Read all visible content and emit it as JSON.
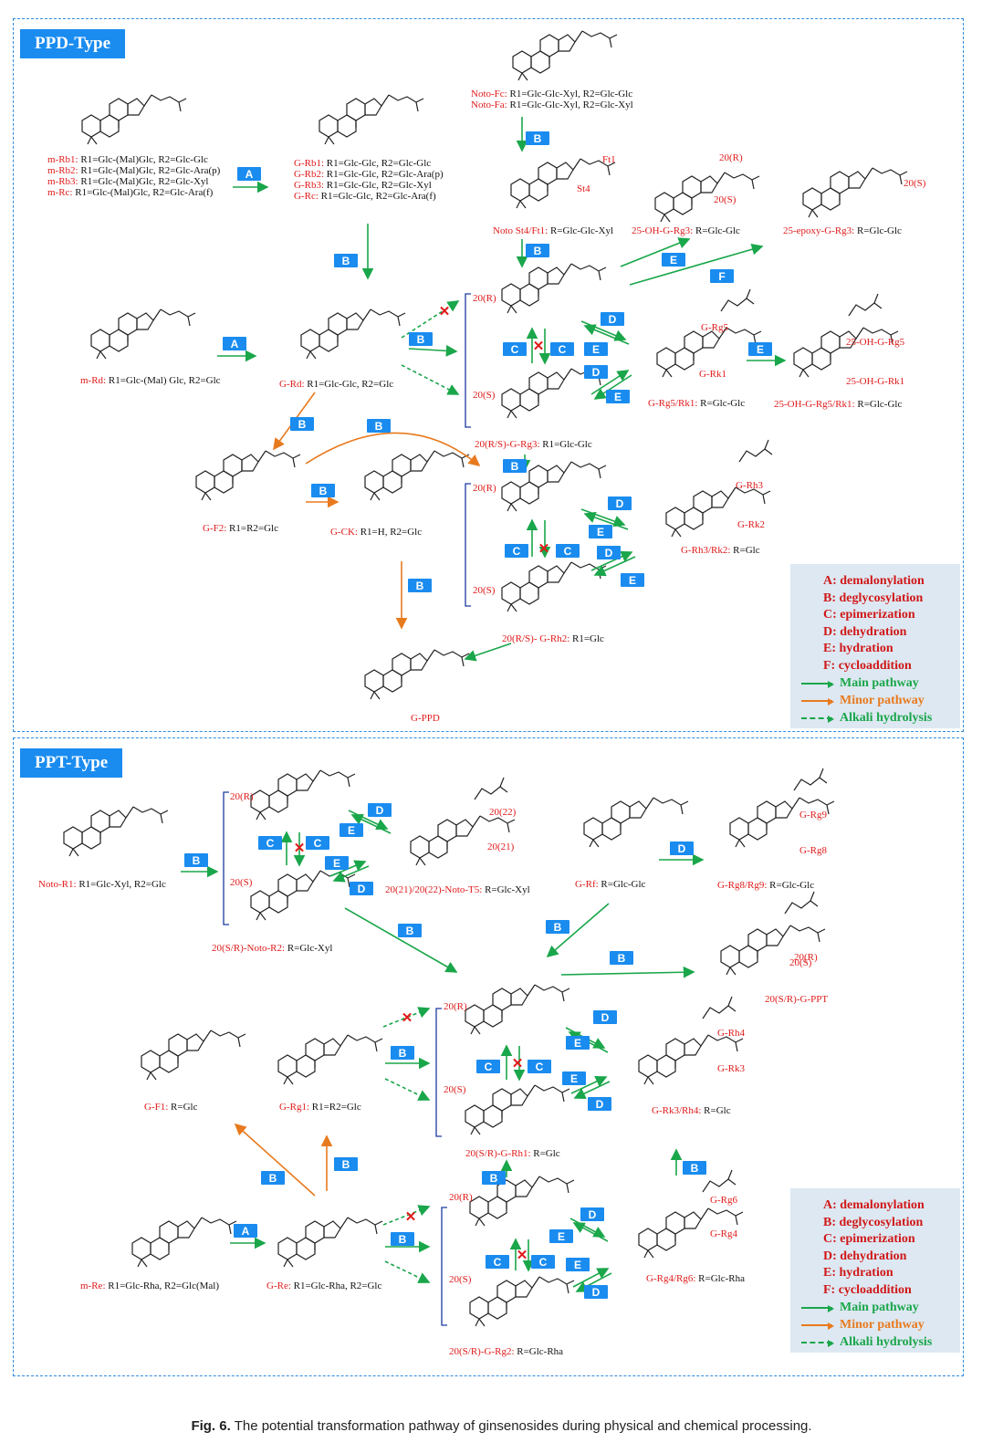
{
  "ppd_tag": "PPD-Type",
  "ppt_tag": "PPT-Type",
  "caption": {
    "fig": "Fig. 6.",
    "text": "The potential transformation pathway of ginsenosides during physical and chemical processing."
  },
  "legend": {
    "items": [
      "A: demalonylation",
      "B: deglycosylation",
      "C: epimerization",
      "D: dehydration",
      "E: hydration",
      "F: cycloaddition"
    ],
    "main": "Main pathway",
    "minor": "Minor pathway",
    "alkali": "Alkali hydrolysis"
  },
  "colors": {
    "main": "#1aa64a",
    "minor": "#e87a1e",
    "step": "#1a8cf0",
    "label": "#e01a1a"
  },
  "ppd": {
    "mrb": [
      "m-Rb1: R1=Glc-(Mal)Glc, R2=Glc-Glc",
      "m-Rb2: R1=Glc-(Mal)Glc, R2=Glc-Ara(p)",
      "m-Rb3: R1=Glc-(Mal)Glc, R2=Glc-Xyl",
      "m-Rc: R1=Glc-(Mal)Glc, R2=Glc-Ara(f)"
    ],
    "grb": [
      "G-Rb1: R1=Glc-Glc, R2=Glc-Glc",
      "G-Rb2: R1=Glc-Glc, R2=Glc-Ara(p)",
      "G-Rb3: R1=Glc-Glc, R2=Glc-Xyl",
      "G-Rc: R1=Glc-Glc, R2=Glc-Ara(f)"
    ],
    "noto_fc": "Noto-Fc: R1=Glc-Glc-Xyl, R2=Glc-Glc",
    "noto_fa": "Noto-Fa: R1=Glc-Glc-Xyl, R2=Glc-Xyl",
    "st4": "Noto St4/Ft1: R=Glc-Glc-Xyl",
    "ft1": "Ft1",
    "st4_tag": "St4",
    "oh_rg3": "25-OH-G-Rg3: R=Glc-Glc",
    "epoxy_rg3": "25-epoxy-G-Rg3: R=Glc-Glc",
    "mrd": "m-Rd: R1=Glc-(Mal) Glc, R2=Glc",
    "grd": "G-Rd: R1=Glc-Glc, R2=Glc",
    "rg3": "20(R/S)-G-Rg3: R1=Glc-Glc",
    "rg5": "G-Rg5/Rk1: R=Glc-Glc",
    "rg5_tag": "G-Rg5",
    "rk1_tag": "G-Rk1",
    "oh_rg5": "25-OH-G-Rg5/Rk1: R=Glc-Glc",
    "oh_rg5_tag": "25-OH-G-Rg5",
    "oh_rk1_tag": "25-OH-G-Rk1",
    "f2": "G-F2: R1=R2=Glc",
    "ck": "G-CK: R1=H, R2=Glc",
    "rh2": "20(R/S)- G-Rh2: R1=Glc",
    "rh3": "G-Rh3/Rk2: R=Glc",
    "rh3_tag": "G-Rh3",
    "rk2_tag": "G-Rk2",
    "ppd": "G-PPD"
  },
  "ppt": {
    "r1": "Noto-R1: R1=Glc-Xyl, R2=Glc",
    "r2": "20(S/R)-Noto-R2: R=Glc-Xyl",
    "t5": "20(21)/20(22)-Noto-T5: R=Glc-Xyl",
    "t5_a": "20(22)",
    "t5_b": "20(21)",
    "rf": "G-Rf: R=Glc-Glc",
    "rg8": "G-Rg8/Rg9: R=Glc-Glc",
    "rg9_tag": "G-Rg9",
    "rg8_tag": "G-Rg8",
    "g_ppt": "20(S/R)-G-PPT",
    "f1": "G-F1: R=Glc",
    "rg1": "G-Rg1: R1=R2=Glc",
    "rh1": "20(S/R)-G-Rh1: R=Glc",
    "rk3": "G-Rk3/Rh4: R=Glc",
    "rh4_tag": "G-Rh4",
    "rk3_tag": "G-Rk3",
    "mre": "m-Re: R1=Glc-Rha, R2=Glc(Mal)",
    "gre": "G-Re: R1=Glc-Rha, R2=Glc",
    "rg2": "20(S/R)-G-Rg2: R=Glc-Rha",
    "rg4": "G-Rg4/Rg6: R=Glc-Rha",
    "rg6_tag": "G-Rg6",
    "rg4_tag": "G-Rg4"
  },
  "epimers": {
    "r": "20(R)",
    "s": "20(S)"
  }
}
